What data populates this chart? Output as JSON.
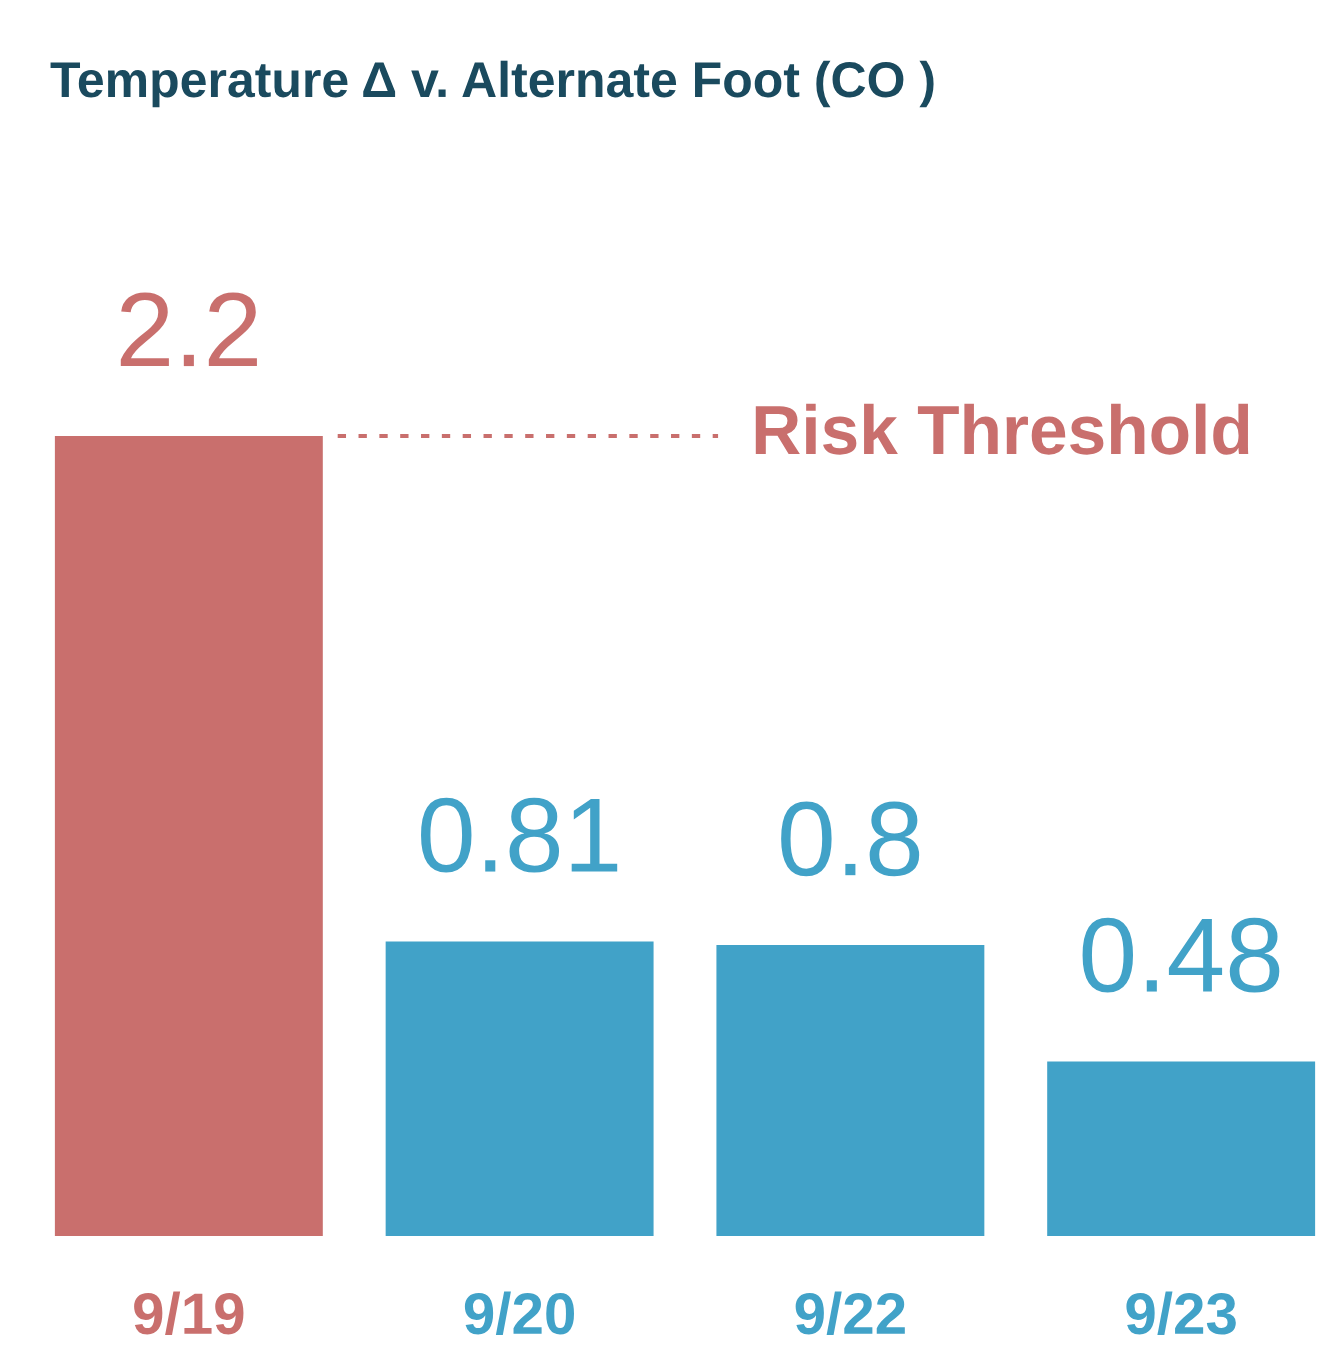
{
  "chart_data": {
    "type": "bar",
    "title": "Temperature Δ v. Alternate Foot (CO )",
    "categories": [
      "9/19",
      "9/20",
      "9/22",
      "9/23"
    ],
    "values": [
      2.2,
      0.81,
      0.8,
      0.48
    ],
    "colors": [
      "#c96f6d",
      "#41a2c8",
      "#41a2c8",
      "#41a2c8"
    ],
    "data_labels": true,
    "grid": false,
    "ref_lines": [
      {
        "axis": "y",
        "value": 2.2,
        "label": "Risk Threshold",
        "color": "#c96f6d",
        "line_style": "dotted"
      }
    ]
  }
}
